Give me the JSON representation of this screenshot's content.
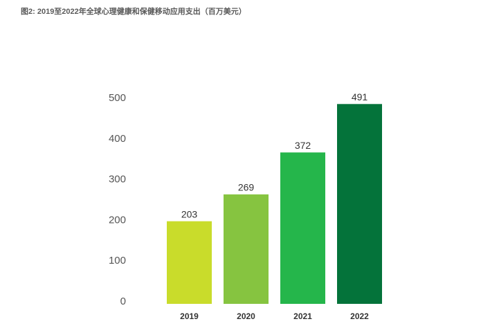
{
  "chart_data": {
    "type": "bar",
    "title": "图2: 2019至2022年全球心理健康和保健移动应用支出（百万美元）",
    "categories": [
      "2019",
      "2020",
      "2021",
      "2022"
    ],
    "values": [
      203,
      269,
      372,
      491
    ],
    "colors": [
      "#c9dc2b",
      "#86c440",
      "#25b64b",
      "#04733a"
    ],
    "ylim": [
      0,
      500
    ],
    "yticks": [
      0,
      100,
      200,
      300,
      400,
      500
    ],
    "grid": false
  }
}
